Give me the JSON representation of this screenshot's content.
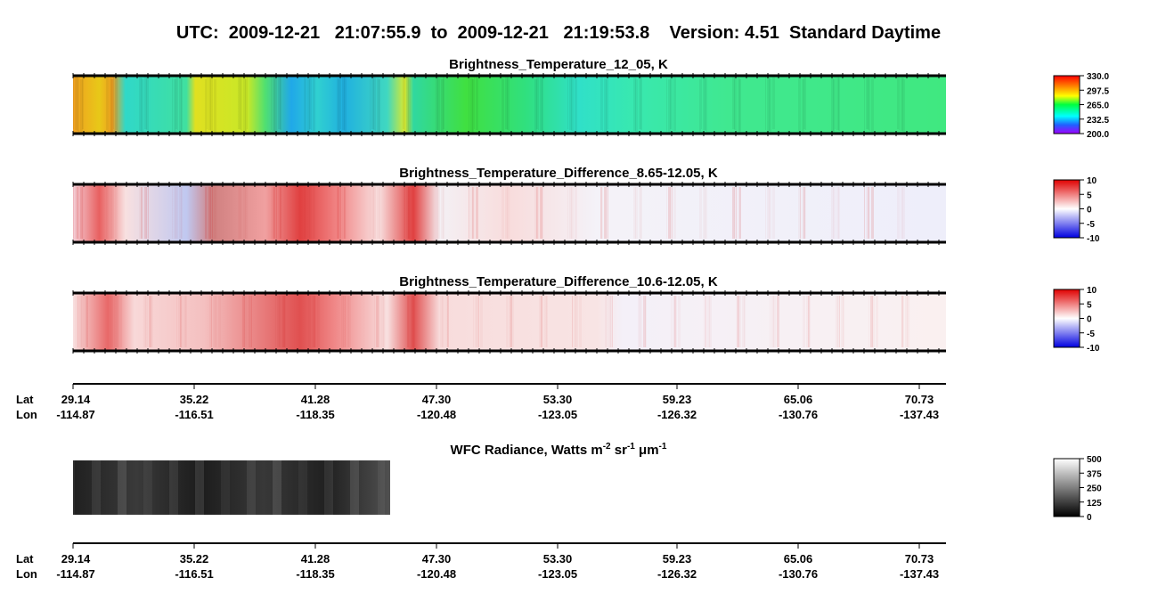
{
  "title": "UTC:  2009-12-21   21:07:55.9  to  2009-12-21   21:19:53.8    Version: 4.51  Standard Daytime",
  "panels": [
    {
      "title": "Brightness_Temperature_12_05, K",
      "colorbar": [
        "330.0",
        "297.5",
        "265.0",
        "232.5",
        "200.0"
      ]
    },
    {
      "title": "Brightness_Temperature_Difference_8.65-12.05, K",
      "colorbar": [
        "10",
        "5",
        "0",
        "-5",
        "-10"
      ]
    },
    {
      "title": "Brightness_Temperature_Difference_10.6-12.05, K",
      "colorbar": [
        "10",
        "5",
        "0",
        "-5",
        "-10"
      ]
    }
  ],
  "axes": [
    {
      "lat_label": "Lat",
      "lon_label": "Lon",
      "lat": [
        "29.14",
        "35.22",
        "41.28",
        "47.30",
        "53.30",
        "59.23",
        "65.06",
        "70.73"
      ],
      "lon": [
        "-114.87",
        "-116.51",
        "-118.35",
        "-120.48",
        "-123.05",
        "-126.32",
        "-130.76",
        "-137.43"
      ]
    },
    {
      "lat_label": "Lat",
      "lon_label": "Lon",
      "lat": [
        "29.14",
        "35.22",
        "41.28",
        "47.30",
        "53.30",
        "59.23",
        "65.06",
        "70.73"
      ],
      "lon": [
        "-114.87",
        "-116.51",
        "-118.35",
        "-120.48",
        "-123.05",
        "-126.32",
        "-130.76",
        "-137.43"
      ]
    }
  ],
  "wfc": {
    "title_parts": [
      "WFC Radiance, Watts m",
      "-2",
      " sr",
      "-1",
      " μm",
      "-1"
    ],
    "colorbar": [
      "500",
      "375",
      "250",
      "125",
      "0"
    ]
  }
}
